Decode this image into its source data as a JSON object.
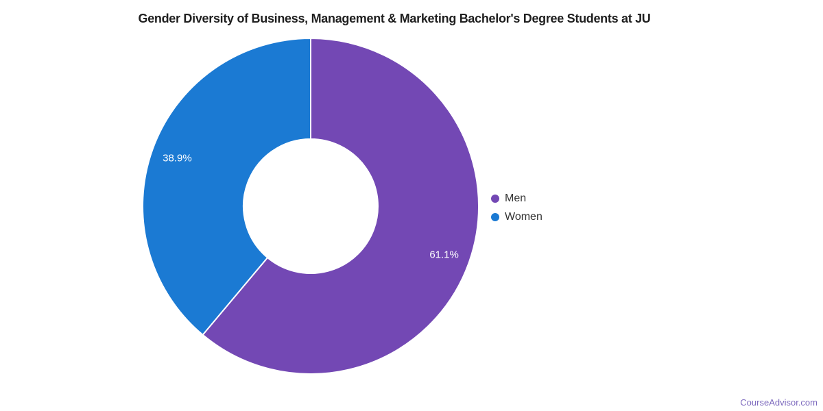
{
  "title": "Gender Diversity of Business, Management & Marketing Bachelor's Degree Students at JU",
  "watermark": "CourseAdvisor.com",
  "colors": {
    "men": "#7348b4",
    "women": "#1b7ad3",
    "title_text": "#1f1f1f",
    "legend_text": "#333333",
    "watermark_text": "#7d6abe",
    "slice_label_text": "#ffffff",
    "slice_border": "#ffffff"
  },
  "chart_data": {
    "type": "pie",
    "subtype": "donut",
    "title": "Gender Diversity of Business, Management & Marketing Bachelor's Degree Students at JU",
    "series": [
      {
        "name": "Men",
        "value": 61.1,
        "label": "61.1%",
        "color": "#7348b4"
      },
      {
        "name": "Women",
        "value": 38.9,
        "label": "38.9%",
        "color": "#1b7ad3"
      }
    ],
    "start_angle_deg": 0,
    "direction": "clockwise",
    "inner_radius_ratio": 0.4,
    "legend_position": "right",
    "labels_on_slices": true
  }
}
